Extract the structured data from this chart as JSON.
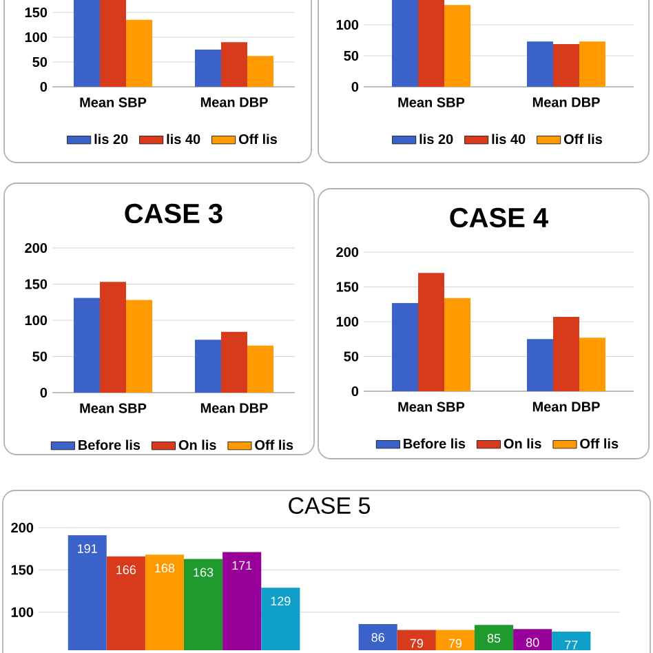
{
  "chart_data": [
    {
      "type": "bar",
      "categories": [
        "Mean SBP",
        "Mean DBP"
      ],
      "ylim": [
        0,
        175
      ],
      "yticks": [
        0,
        50,
        100,
        150
      ],
      "grid": "y",
      "legend": "bottom",
      "series": [
        {
          "name": "lis 20",
          "color": "#3a62c8",
          "values": [
            175,
            75
          ]
        },
        {
          "name": "lis 40",
          "color": "#d83b1c",
          "values": [
            175,
            90
          ]
        },
        {
          "name": "Off lis",
          "color": "#ff9a00",
          "values": [
            135,
            62
          ]
        }
      ]
    },
    {
      "type": "bar",
      "categories": [
        "Mean SBP",
        "Mean DBP"
      ],
      "ylim": [
        0,
        140
      ],
      "yticks": [
        0,
        50,
        100
      ],
      "grid": "y",
      "legend": "bottom",
      "series": [
        {
          "name": "lis 20",
          "color": "#3a62c8",
          "values": [
            140,
            73
          ]
        },
        {
          "name": "lis 40",
          "color": "#d83b1c",
          "values": [
            140,
            69
          ]
        },
        {
          "name": "Off lis",
          "color": "#ff9a00",
          "values": [
            132,
            73
          ]
        }
      ]
    },
    {
      "type": "bar",
      "title": "CASE 3",
      "categories": [
        "Mean SBP",
        "Mean DBP"
      ],
      "ylim": [
        0,
        200
      ],
      "yticks": [
        0,
        50,
        100,
        150,
        200
      ],
      "grid": "y",
      "legend": "bottom",
      "series": [
        {
          "name": "Before lis",
          "color": "#3a62c8",
          "values": [
            131,
            73
          ]
        },
        {
          "name": "On lis",
          "color": "#d83b1c",
          "values": [
            153,
            84
          ]
        },
        {
          "name": "Off lis",
          "color": "#ff9a00",
          "values": [
            128,
            65
          ]
        }
      ]
    },
    {
      "type": "bar",
      "title": "CASE 4",
      "categories": [
        "Mean SBP",
        "Mean DBP"
      ],
      "ylim": [
        0,
        200
      ],
      "yticks": [
        0,
        50,
        100,
        150,
        200
      ],
      "grid": "y",
      "legend": "bottom",
      "series": [
        {
          "name": "Before lis",
          "color": "#3a62c8",
          "values": [
            127,
            75
          ]
        },
        {
          "name": "On lis",
          "color": "#d83b1c",
          "values": [
            170,
            107
          ]
        },
        {
          "name": "Off lis",
          "color": "#ff9a00",
          "values": [
            134,
            77
          ]
        }
      ]
    },
    {
      "type": "bar",
      "title": "CASE 5",
      "categories": [
        null,
        null
      ],
      "ylim": [
        55,
        200
      ],
      "yticks": [
        100,
        150,
        200
      ],
      "grid": "y",
      "tick_labels": "y",
      "series": [
        {
          "color": "#3a62c8",
          "values": [
            191,
            86
          ],
          "value_labels": [
            "191",
            "86"
          ]
        },
        {
          "color": "#d83b1c",
          "values": [
            166,
            79
          ],
          "value_labels": [
            "166",
            "79"
          ]
        },
        {
          "color": "#ff9a00",
          "values": [
            168,
            79
          ],
          "value_labels": [
            "168",
            "79"
          ]
        },
        {
          "color": "#1e9a2e",
          "values": [
            163,
            85
          ],
          "value_labels": [
            "163",
            "85"
          ]
        },
        {
          "color": "#990099",
          "values": [
            171,
            80
          ],
          "value_labels": [
            "171",
            "80"
          ]
        },
        {
          "color": "#0f9fc8",
          "values": [
            129,
            77
          ],
          "value_labels": [
            "129",
            "77"
          ]
        }
      ]
    }
  ]
}
